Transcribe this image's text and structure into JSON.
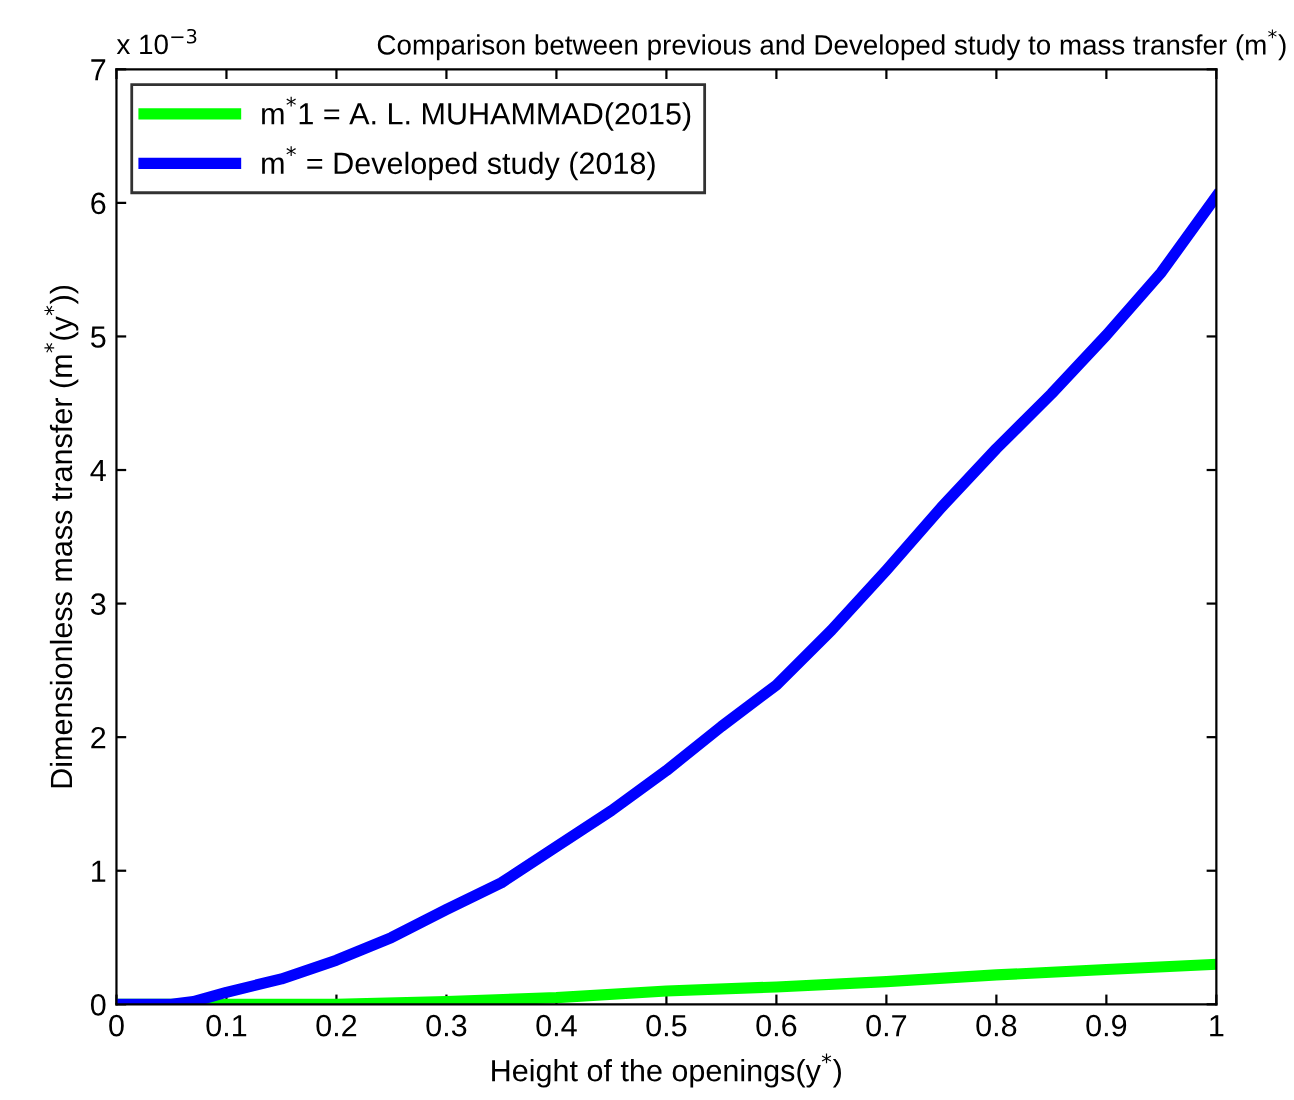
{
  "chart_data": {
    "type": "line",
    "title": "Comparison between previous and Developed study to mass transfer (m$^{*}$)",
    "xlabel": "Height of the openings(y$^{*}$)",
    "ylabel": "Dimensionless mass transfer (m$^{*}$(y$^{*}$))",
    "annotations": [
      "x 10$^{−3}$"
    ],
    "series": [
      {
        "name": "m$^{*}$1 = A. L. MUHAMMAD(2015)",
        "color": "#00ff00",
        "x": [
          0,
          0.1,
          0.2,
          0.3,
          0.4,
          0.5,
          0.6,
          0.7,
          0.8,
          0.9,
          1.0
        ],
        "values": [
          0,
          0,
          0,
          0.02,
          0.05,
          0.1,
          0.13,
          0.17,
          0.22,
          0.26,
          0.3
        ]
      },
      {
        "name": "m$^{*}$ = Developed study (2018)",
        "color": "#0000ff",
        "x": [
          0,
          0.05,
          0.07,
          0.1,
          0.15,
          0.2,
          0.25,
          0.3,
          0.35,
          0.4,
          0.45,
          0.5,
          0.55,
          0.6,
          0.65,
          0.7,
          0.75,
          0.8,
          0.85,
          0.9,
          0.95,
          1.0
        ],
        "values": [
          0,
          0,
          0.02,
          0.09,
          0.19,
          0.33,
          0.5,
          0.71,
          0.91,
          1.18,
          1.45,
          1.75,
          2.08,
          2.39,
          2.8,
          3.25,
          3.72,
          4.16,
          4.57,
          5.01,
          5.48,
          6.05
        ]
      }
    ],
    "xlim": [
      0,
      1
    ],
    "xticks": [
      0,
      0.1,
      0.2,
      0.3,
      0.4,
      0.5,
      0.6,
      0.7,
      0.8,
      0.9,
      1
    ],
    "ylim": [
      0,
      7
    ],
    "yticks": [
      0,
      1,
      2,
      3,
      4,
      5,
      6,
      7
    ],
    "grid": false,
    "legend": "top left",
    "line_style": "solid",
    "marker": "none"
  }
}
